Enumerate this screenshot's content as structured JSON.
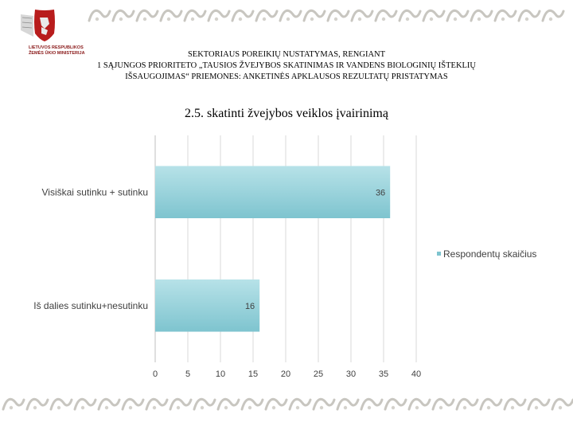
{
  "logo": {
    "line1": "LIETUVOS RESPUBLIKOS",
    "line2": "ŽEMĖS ŪKIO MINISTERIJA"
  },
  "header": {
    "line1": "SEKTORIAUS POREIKIŲ NUSTATYMAS, RENGIANT",
    "line2": "1 SĄJUNGOS PRIORITETO „TAUSIOS ŽVEJYBOS SKATINIMAS IR VANDENS BIOLOGINIŲ IŠTEKLIŲ",
    "line3": "IŠSAUGOJIMAS“ PRIEMONES: ANKETINĖS APKLAUSOS REZULTATŲ PRISTATYMAS"
  },
  "chart_data": {
    "type": "bar",
    "orientation": "horizontal",
    "title": "2.5. skatinti žvejybos veiklos įvairinimą",
    "categories": [
      "Visiškai sutinku + sutinku",
      "Iš dalies sutinku+nesutinku"
    ],
    "series": [
      {
        "name": "Respondentų skaičius",
        "values": [
          36,
          16
        ]
      }
    ],
    "xlim": [
      0,
      40
    ],
    "xticks": [
      0,
      5,
      10,
      15,
      20,
      25,
      30,
      35,
      40
    ],
    "grid": true,
    "legend": "right",
    "colors": {
      "bar_top": "#b7e2e8",
      "bar_bottom": "#7ec4cf",
      "grid": "#d9d9d9"
    }
  }
}
